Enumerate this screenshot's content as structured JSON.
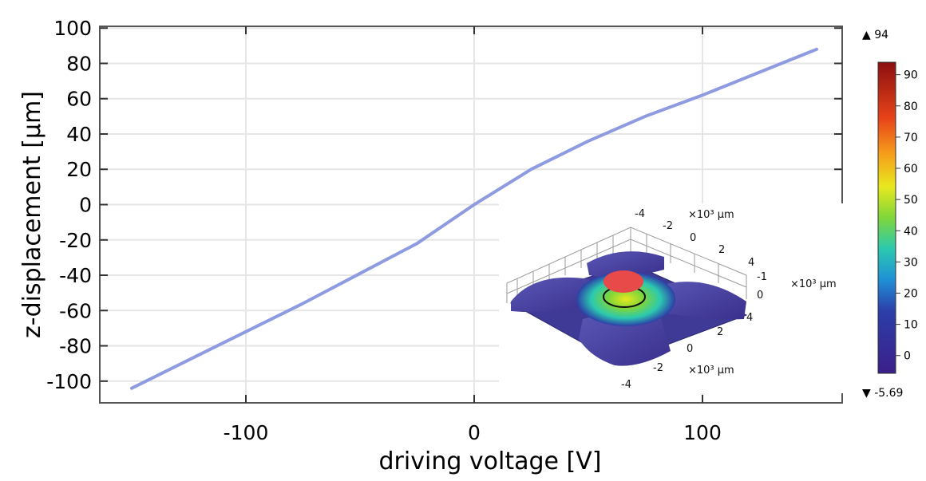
{
  "chart_data": {
    "type": "line",
    "xlabel": "driving voltage [V]",
    "ylabel": "z-displacement [µm]",
    "xlim": [
      -160,
      160
    ],
    "ylim": [
      -110,
      100
    ],
    "xticks": [
      -100,
      0,
      100
    ],
    "yticks": [
      100,
      80,
      60,
      40,
      20,
      0,
      -20,
      -40,
      -60,
      -80,
      -100
    ],
    "grid": true,
    "series": [
      {
        "color": "#8e9be0",
        "x": [
          -150,
          -125,
          -100,
          -75,
          -50,
          -25,
          0,
          25,
          50,
          75,
          100,
          125,
          150
        ],
        "y": [
          -104,
          -88,
          -72,
          -56,
          -39,
          -22,
          0,
          20,
          36,
          50,
          62,
          75,
          88
        ]
      }
    ],
    "colorbar": {
      "max_label": "▲ 94",
      "min_label": "▼ -5.69",
      "ticks": [
        90,
        80,
        70,
        60,
        50,
        40,
        30,
        20,
        10,
        0
      ],
      "range": [
        -5.69,
        94
      ],
      "colormap": "rainbow"
    },
    "inset": {
      "unit_label": "×10³ µm",
      "axis_a_ticks": [
        "-4",
        "-2",
        "0",
        "2",
        "4"
      ],
      "axis_b_ticks": [
        "4",
        "2",
        "0",
        "-2",
        "-4"
      ],
      "z_ticks": [
        "-1",
        "0"
      ]
    }
  }
}
